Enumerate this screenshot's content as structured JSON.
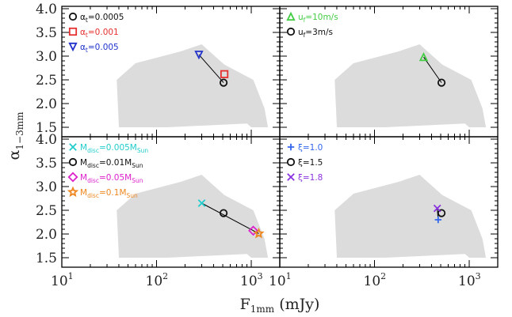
{
  "chart_data": {
    "type": "scatter",
    "layout": "2x2 grid, shared axes",
    "xlabel": "F",
    "xlabel_sub": "1mm",
    "xlabel_unit": " (mJy)",
    "ylabel": "α",
    "ylabel_sub": "1−3mm",
    "xscale": "log",
    "xlim": [
      10,
      2000
    ],
    "ylim": [
      1.3,
      4.05
    ],
    "x_ticks": [
      {
        "base": "10",
        "exp": "1",
        "value": 10
      },
      {
        "base": "10",
        "exp": "2",
        "value": 100
      },
      {
        "base": "10",
        "exp": "3",
        "value": 1000
      }
    ],
    "y_ticks": [
      "1.5",
      "2.0",
      "2.5",
      "3.0",
      "3.5",
      "4.0"
    ],
    "y_tick_values": [
      1.5,
      2.0,
      2.5,
      3.0,
      3.5,
      4.0
    ],
    "observed_region": {
      "color": "#dcdcdc",
      "polygon": [
        [
          40,
          1.5
        ],
        [
          130,
          1.5
        ],
        [
          900,
          1.58
        ],
        [
          1000,
          1.5
        ],
        [
          1500,
          1.5
        ],
        [
          1380,
          1.9
        ],
        [
          1050,
          2.5
        ],
        [
          520,
          2.82
        ],
        [
          340,
          3.15
        ],
        [
          300,
          3.25
        ],
        [
          180,
          3.1
        ],
        [
          60,
          2.85
        ],
        [
          38,
          2.5
        ]
      ]
    },
    "panels": [
      {
        "id": "alpha_t",
        "legend": [
          {
            "pre": "α",
            "sub": "t",
            "post": "=0.0005",
            "color": "#111111",
            "marker": "circle"
          },
          {
            "pre": "α",
            "sub": "t",
            "post": "=0.001",
            "color": "#e53030",
            "marker": "square"
          },
          {
            "pre": "α",
            "sub": "t",
            "post": "=0.005",
            "color": "#2233cc",
            "marker": "triangle-down"
          }
        ],
        "points": [
          {
            "x": 280,
            "y": 3.03,
            "color": "#2233cc",
            "marker": "triangle-down"
          },
          {
            "x": 520,
            "y": 2.62,
            "color": "#e53030",
            "marker": "square"
          },
          {
            "x": 510,
            "y": 2.44,
            "color": "#111111",
            "marker": "circle"
          }
        ],
        "lines": [
          [
            [
              280,
              3.03
            ],
            [
              510,
              2.44
            ]
          ]
        ]
      },
      {
        "id": "u_f",
        "legend": [
          {
            "pre": "u",
            "sub": "f",
            "post": "=10m/s",
            "color": "#44cc44",
            "marker": "triangle-up"
          },
          {
            "pre": "u",
            "sub": "f",
            "post": "=3m/s",
            "color": "#111111",
            "marker": "circle"
          }
        ],
        "points": [
          {
            "x": 330,
            "y": 2.98,
            "color": "#44cc44",
            "marker": "triangle-up"
          },
          {
            "x": 510,
            "y": 2.44,
            "color": "#111111",
            "marker": "circle"
          }
        ],
        "lines": [
          [
            [
              330,
              2.98
            ],
            [
              510,
              2.44
            ]
          ]
        ]
      },
      {
        "id": "M_disc",
        "legend": [
          {
            "pre": "M",
            "sub": "disc",
            "post": "=0.005M",
            "sub2": "Sun",
            "color": "#22cccc",
            "marker": "x"
          },
          {
            "pre": "M",
            "sub": "disc",
            "post": "=0.01M",
            "sub2": "Sun",
            "color": "#111111",
            "marker": "circle"
          },
          {
            "pre": "M",
            "sub": "disc",
            "post": "=0.05M",
            "sub2": "Sun",
            "color": "#dd22cc",
            "marker": "diamond"
          },
          {
            "pre": "M",
            "sub": "disc",
            "post": "=0.1M",
            "sub2": "Sun",
            "color": "#ee8822",
            "marker": "star"
          }
        ],
        "points": [
          {
            "x": 300,
            "y": 2.65,
            "color": "#22cccc",
            "marker": "x"
          },
          {
            "x": 510,
            "y": 2.44,
            "color": "#111111",
            "marker": "circle"
          },
          {
            "x": 1050,
            "y": 2.07,
            "color": "#dd22cc",
            "marker": "diamond"
          },
          {
            "x": 1200,
            "y": 2.01,
            "color": "#ee8822",
            "marker": "star"
          }
        ],
        "lines": [
          [
            [
              300,
              2.65
            ],
            [
              1200,
              2.01
            ]
          ]
        ]
      },
      {
        "id": "xi",
        "legend": [
          {
            "pre": "ξ",
            "post": "=1.0",
            "color": "#3366ee",
            "marker": "plus"
          },
          {
            "pre": "ξ",
            "post": "=1.5",
            "color": "#111111",
            "marker": "circle"
          },
          {
            "pre": "ξ",
            "post": "=1.8",
            "color": "#8833dd",
            "marker": "x"
          }
        ],
        "points": [
          {
            "x": 470,
            "y": 2.3,
            "color": "#3366ee",
            "marker": "plus"
          },
          {
            "x": 510,
            "y": 2.44,
            "color": "#111111",
            "marker": "circle"
          },
          {
            "x": 460,
            "y": 2.54,
            "color": "#8833dd",
            "marker": "x"
          }
        ],
        "lines": [
          [
            [
              470,
              2.3
            ],
            [
              460,
              2.54
            ]
          ]
        ]
      }
    ]
  }
}
